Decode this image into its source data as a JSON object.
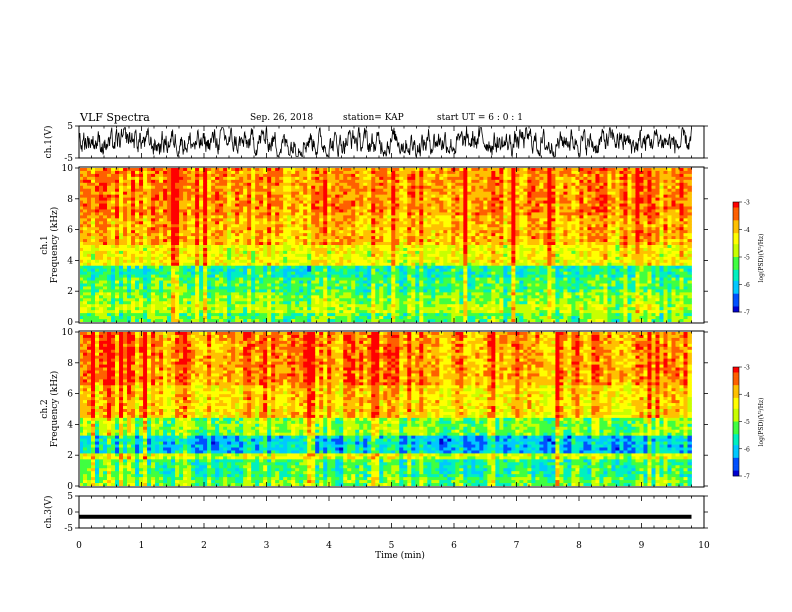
{
  "header": {
    "title": "VLF Spectra",
    "date": "Sep. 26, 2018",
    "station": "station= KAP",
    "start_ut": "start  UT =   6 : 0 : 1"
  },
  "colors": {
    "spectrogram_scale": [
      "#000000",
      "#0000d0",
      "#0050ff",
      "#00c8ff",
      "#00f0c0",
      "#40ff40",
      "#c8ff00",
      "#ffff00",
      "#ffc000",
      "#ff6000",
      "#ff0000",
      "#ffb0b0",
      "#ffffff"
    ],
    "waveform": "#000000"
  },
  "chart_data": [
    {
      "type": "line",
      "name": "ch1-waveform",
      "ylabel": "ch.1(V)",
      "ylim": [
        -5,
        5
      ],
      "yticks": [
        "5",
        "-5"
      ],
      "xlim": [
        0,
        10
      ],
      "description_values": "noise waveform, amplitude about -4 to 4 V across 0-9.8 min"
    },
    {
      "type": "heatmap",
      "name": "ch1-spectrogram",
      "ylabel_line1": "ch.1",
      "ylabel_line2": "Frequency (kHz)",
      "ylim": [
        0,
        10
      ],
      "yticks": [
        "0",
        "2",
        "4",
        "6",
        "8",
        "10"
      ],
      "xlim": [
        0,
        9.8
      ],
      "colorbar": {
        "label": "log(PSD)(V²/Hz)",
        "range": [
          -7,
          -3
        ],
        "ticks": [
          "-3",
          "-4",
          "-5",
          "-6",
          "-7"
        ]
      },
      "bands": [
        {
          "f": [
            0,
            0.5
          ],
          "level": -5.2
        },
        {
          "f": [
            0.5,
            1.2
          ],
          "level": -4.8
        },
        {
          "f": [
            1.2,
            2.0
          ],
          "level": -5.0
        },
        {
          "f": [
            2.0,
            2.8
          ],
          "level": -5.3
        },
        {
          "f": [
            2.8,
            3.6
          ],
          "level": -5.6
        },
        {
          "f": [
            3.6,
            5.0
          ],
          "level": -4.4
        },
        {
          "f": [
            5.0,
            7.0
          ],
          "level": -3.9
        },
        {
          "f": [
            7.0,
            10.0
          ],
          "level": -3.7
        }
      ]
    },
    {
      "type": "heatmap",
      "name": "ch2-spectrogram",
      "ylabel_line1": "ch.2",
      "ylabel_line2": "Frequency (kHz)",
      "ylim": [
        0,
        10
      ],
      "yticks": [
        "0",
        "2",
        "4",
        "6",
        "8",
        "10"
      ],
      "xlim": [
        0,
        9.8
      ],
      "colorbar": {
        "label": "log(PSD)(V²/Hz)",
        "range": [
          -7,
          -3
        ],
        "ticks": [
          "-3",
          "-4",
          "-5",
          "-6",
          "-7"
        ]
      },
      "bands": [
        {
          "f": [
            0,
            0.6
          ],
          "level": -5.1
        },
        {
          "f": [
            0.6,
            1.8
          ],
          "level": -5.4
        },
        {
          "f": [
            1.8,
            2.2
          ],
          "level": -4.6
        },
        {
          "f": [
            2.2,
            3.2
          ],
          "level": -6.0
        },
        {
          "f": [
            3.2,
            4.5
          ],
          "level": -5.0
        },
        {
          "f": [
            4.5,
            6.5
          ],
          "level": -4.1
        },
        {
          "f": [
            6.5,
            10.0
          ],
          "level": -3.7
        }
      ]
    },
    {
      "type": "line",
      "name": "ch3-waveform",
      "ylabel": "ch.3(V)",
      "ylim": [
        -5,
        5
      ],
      "yticks": [
        "5",
        "0",
        "-5"
      ],
      "xlim": [
        0,
        10
      ],
      "constant_value": -1.5
    }
  ],
  "xaxis": {
    "label": "Time (min)",
    "ticks": [
      "0",
      "1",
      "2",
      "3",
      "4",
      "5",
      "6",
      "7",
      "8",
      "9",
      "10"
    ],
    "range": [
      0,
      10
    ]
  }
}
